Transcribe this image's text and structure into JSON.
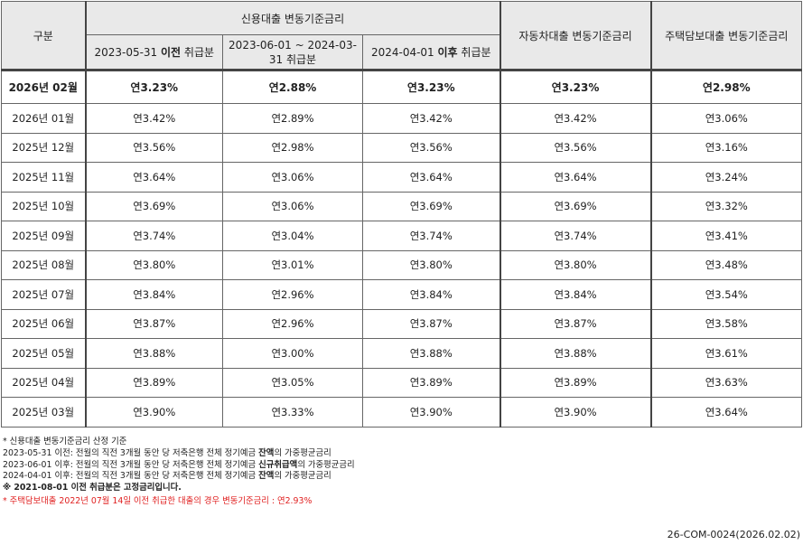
{
  "header": {
    "gubun": "구분",
    "credit_group": "신용대출 변동기준금리",
    "credit_col1": {
      "prefix": "2023-05-31 ",
      "bold": "이전",
      "suffix": " 취급분"
    },
    "credit_col2": "2023-06-01 ~ 2024-03-31 취급분",
    "credit_col3": {
      "prefix": "2024-04-01 ",
      "bold": "이후",
      "suffix": " 취급분"
    },
    "auto": "자동차대출 변동기준금리",
    "mortgage": "주택담보대출 변동기준금리"
  },
  "rows": [
    {
      "month": "2026년 02월",
      "c1": "연3.23%",
      "c2": "연2.88%",
      "c3": "연3.23%",
      "auto": "연3.23%",
      "mort": "연2.98%"
    },
    {
      "month": "2026년 01월",
      "c1": "연3.42%",
      "c2": "연2.89%",
      "c3": "연3.42%",
      "auto": "연3.42%",
      "mort": "연3.06%"
    },
    {
      "month": "2025년 12월",
      "c1": "연3.56%",
      "c2": "연2.98%",
      "c3": "연3.56%",
      "auto": "연3.56%",
      "mort": "연3.16%"
    },
    {
      "month": "2025년 11월",
      "c1": "연3.64%",
      "c2": "연3.06%",
      "c3": "연3.64%",
      "auto": "연3.64%",
      "mort": "연3.24%"
    },
    {
      "month": "2025년 10월",
      "c1": "연3.69%",
      "c2": "연3.06%",
      "c3": "연3.69%",
      "auto": "연3.69%",
      "mort": "연3.32%"
    },
    {
      "month": "2025년 09월",
      "c1": "연3.74%",
      "c2": "연3.04%",
      "c3": "연3.74%",
      "auto": "연3.74%",
      "mort": "연3.41%"
    },
    {
      "month": "2025년 08월",
      "c1": "연3.80%",
      "c2": "연3.01%",
      "c3": "연3.80%",
      "auto": "연3.80%",
      "mort": "연3.48%"
    },
    {
      "month": "2025년 07월",
      "c1": "연3.84%",
      "c2": "연2.96%",
      "c3": "연3.84%",
      "auto": "연3.84%",
      "mort": "연3.54%"
    },
    {
      "month": "2025년 06월",
      "c1": "연3.87%",
      "c2": "연2.96%",
      "c3": "연3.87%",
      "auto": "연3.87%",
      "mort": "연3.58%"
    },
    {
      "month": "2025년 05월",
      "c1": "연3.88%",
      "c2": "연3.00%",
      "c3": "연3.88%",
      "auto": "연3.88%",
      "mort": "연3.61%"
    },
    {
      "month": "2025년 04월",
      "c1": "연3.89%",
      "c2": "연3.05%",
      "c3": "연3.89%",
      "auto": "연3.89%",
      "mort": "연3.63%"
    },
    {
      "month": "2025년 03월",
      "c1": "연3.90%",
      "c2": "연3.33%",
      "c3": "연3.90%",
      "auto": "연3.90%",
      "mort": "연3.64%"
    }
  ],
  "notes": {
    "n0": "* 신용대출 변동기준금리 산정 기준",
    "n1": {
      "text": "2023-05-31 이전: 전월의 직전 3개월 동안 당 저축은행 전체 정기예금 ",
      "bold": "잔액",
      "tail": "의 가중평균금리"
    },
    "n2": {
      "text": "2023-06-01 이후: 전월의 직전 3개월 동안 당 저축은행 전체 정기예금 ",
      "bold": "신규취급액",
      "tail": "의 가중평균금리"
    },
    "n3": {
      "text": "2024-04-01 이후: 전월의 직전 3개월 동안 당 저축은행 전체 정기예금 ",
      "bold": "잔액",
      "tail": "의 가중평균금리"
    },
    "n4": "※ 2021-08-01 이전 취급분은 고정금리입니다.",
    "n5": "* 주택담보대출 2022년 07월 14일 이전 취급한 대출의 경우 변동기준금리 : 연2.93%"
  },
  "doc_id": "26-COM-0024(2026.02.02)",
  "colors": {
    "header_bg": "#e9e9e9",
    "border": "#666666",
    "note_red": "#e02020"
  }
}
